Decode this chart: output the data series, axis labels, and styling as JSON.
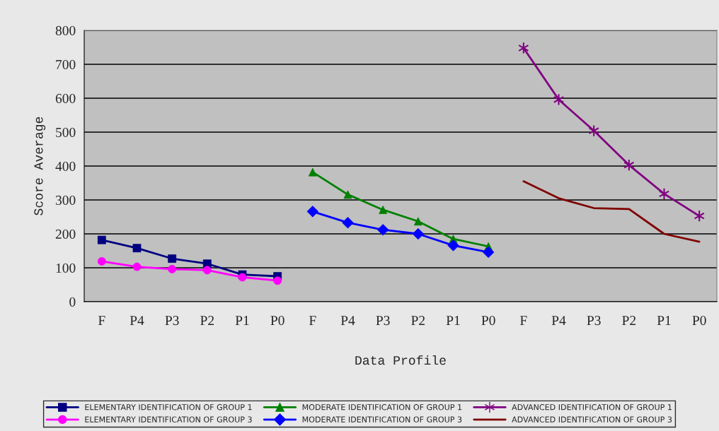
{
  "chart_data": {
    "type": "line",
    "xlabel": "Data Profile",
    "ylabel": "Score Average",
    "categories": [
      "F",
      "P4",
      "P3",
      "P2",
      "P1",
      "P0",
      "F",
      "P4",
      "P3",
      "P2",
      "P1",
      "P0",
      "F",
      "P4",
      "P3",
      "P2",
      "P1",
      "P0"
    ],
    "ylim": [
      0,
      800
    ],
    "yticks": [
      0,
      100,
      200,
      300,
      400,
      500,
      600,
      700,
      800
    ],
    "grid": "y",
    "legend": "bottom",
    "series": [
      {
        "name": "ELEMENTARY IDENTIFICATION OF GROUP 1",
        "color": "#000080",
        "marker": "square",
        "values": [
          182,
          158,
          127,
          112,
          80,
          75,
          null,
          null,
          null,
          null,
          null,
          null,
          null,
          null,
          null,
          null,
          null,
          null
        ]
      },
      {
        "name": "ELEMENTARY IDENTIFICATION OF GROUP 3",
        "color": "#ff00ff",
        "marker": "circle",
        "values": [
          119,
          103,
          96,
          93,
          72,
          62,
          null,
          null,
          null,
          null,
          null,
          null,
          null,
          null,
          null,
          null,
          null,
          null
        ]
      },
      {
        "name": "MODERATE IDENTIFICATION OF GROUP 1",
        "color": "#008000",
        "marker": "triangle",
        "values": [
          null,
          null,
          null,
          null,
          null,
          null,
          382,
          316,
          271,
          237,
          185,
          163,
          null,
          null,
          null,
          null,
          null,
          null
        ]
      },
      {
        "name": "MODERATE IDENTIFICATION OF GROUP 3",
        "color": "#0000ff",
        "marker": "diamond",
        "values": [
          null,
          null,
          null,
          null,
          null,
          null,
          266,
          233,
          212,
          200,
          166,
          146,
          null,
          null,
          null,
          null,
          null,
          null
        ]
      },
      {
        "name": "ADVANCED IDENTIFICATION OF GROUP 1",
        "color": "#800080",
        "marker": "cross",
        "values": [
          null,
          null,
          null,
          null,
          null,
          null,
          null,
          null,
          null,
          null,
          null,
          null,
          748,
          596,
          504,
          403,
          318,
          253
        ]
      },
      {
        "name": "ADVANCED IDENTIFICATION OF GROUP 3",
        "color": "#800000",
        "marker": "none",
        "values": [
          null,
          null,
          null,
          null,
          null,
          null,
          null,
          null,
          null,
          null,
          null,
          null,
          355,
          305,
          276,
          273,
          200,
          177
        ]
      }
    ]
  }
}
